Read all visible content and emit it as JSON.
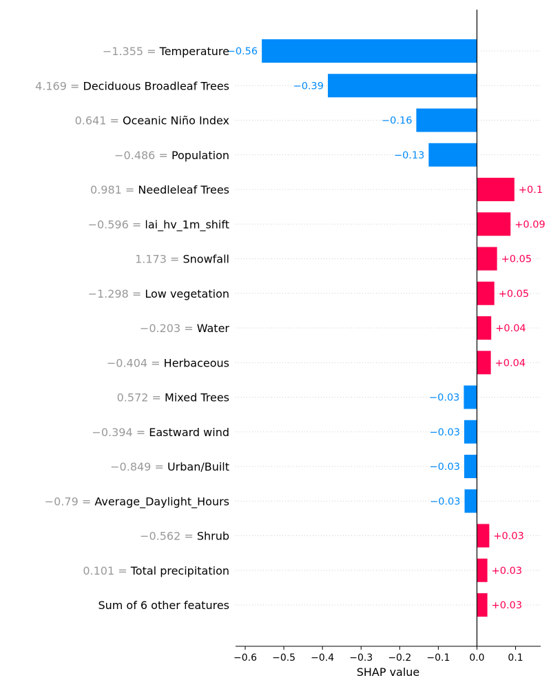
{
  "chart_data": {
    "type": "bar",
    "orientation": "horizontal",
    "xlabel": "SHAP value",
    "xlim": [
      -0.625,
      0.165
    ],
    "xticks": [
      -0.6,
      -0.5,
      -0.4,
      -0.3,
      -0.2,
      -0.1,
      0.0,
      0.1
    ],
    "xtick_labels": [
      "−0.6",
      "−0.5",
      "−0.4",
      "−0.3",
      "−0.2",
      "−0.1",
      "0.0",
      "0.1"
    ],
    "colors": {
      "positive": "#ff0051",
      "negative": "#008bfb"
    },
    "features": [
      {
        "value_label": "−1.355 =",
        "name": "Temperature",
        "shap": -0.557,
        "bar_label": "−0.56"
      },
      {
        "value_label": "4.169 =",
        "name": "Deciduous Broadleaf Trees",
        "shap": -0.386,
        "bar_label": "−0.39"
      },
      {
        "value_label": "0.641 =",
        "name": "Oceanic Niño Index",
        "shap": -0.157,
        "bar_label": "−0.16"
      },
      {
        "value_label": "−0.486 =",
        "name": "Population",
        "shap": -0.125,
        "bar_label": "−0.13"
      },
      {
        "value_label": "0.981 =",
        "name": "Needleleaf Trees",
        "shap": 0.097,
        "bar_label": "+0.1"
      },
      {
        "value_label": "−0.596 =",
        "name": "lai_hv_1m_shift",
        "shap": 0.087,
        "bar_label": "+0.09"
      },
      {
        "value_label": "1.173 =",
        "name": "Snowfall",
        "shap": 0.052,
        "bar_label": "+0.05"
      },
      {
        "value_label": "−1.298 =",
        "name": "Low vegetation",
        "shap": 0.045,
        "bar_label": "+0.05"
      },
      {
        "value_label": "−0.203 =",
        "name": "Water",
        "shap": 0.037,
        "bar_label": "+0.04"
      },
      {
        "value_label": "−0.404 =",
        "name": "Herbaceous",
        "shap": 0.036,
        "bar_label": "+0.04"
      },
      {
        "value_label": "0.572 =",
        "name": "Mixed Trees",
        "shap": -0.034,
        "bar_label": "−0.03"
      },
      {
        "value_label": "−0.394 =",
        "name": "Eastward wind",
        "shap": -0.033,
        "bar_label": "−0.03"
      },
      {
        "value_label": "−0.849 =",
        "name": "Urban/Built",
        "shap": -0.033,
        "bar_label": "−0.03"
      },
      {
        "value_label": "−0.79 =",
        "name": "Average_Daylight_Hours",
        "shap": -0.032,
        "bar_label": "−0.03"
      },
      {
        "value_label": "−0.562 =",
        "name": "Shrub",
        "shap": 0.032,
        "bar_label": "+0.03"
      },
      {
        "value_label": "0.101 =",
        "name": "Total precipitation",
        "shap": 0.027,
        "bar_label": "+0.03"
      },
      {
        "value_label": "",
        "name": "Sum of 6 other features",
        "shap": 0.027,
        "bar_label": "+0.03"
      }
    ]
  }
}
